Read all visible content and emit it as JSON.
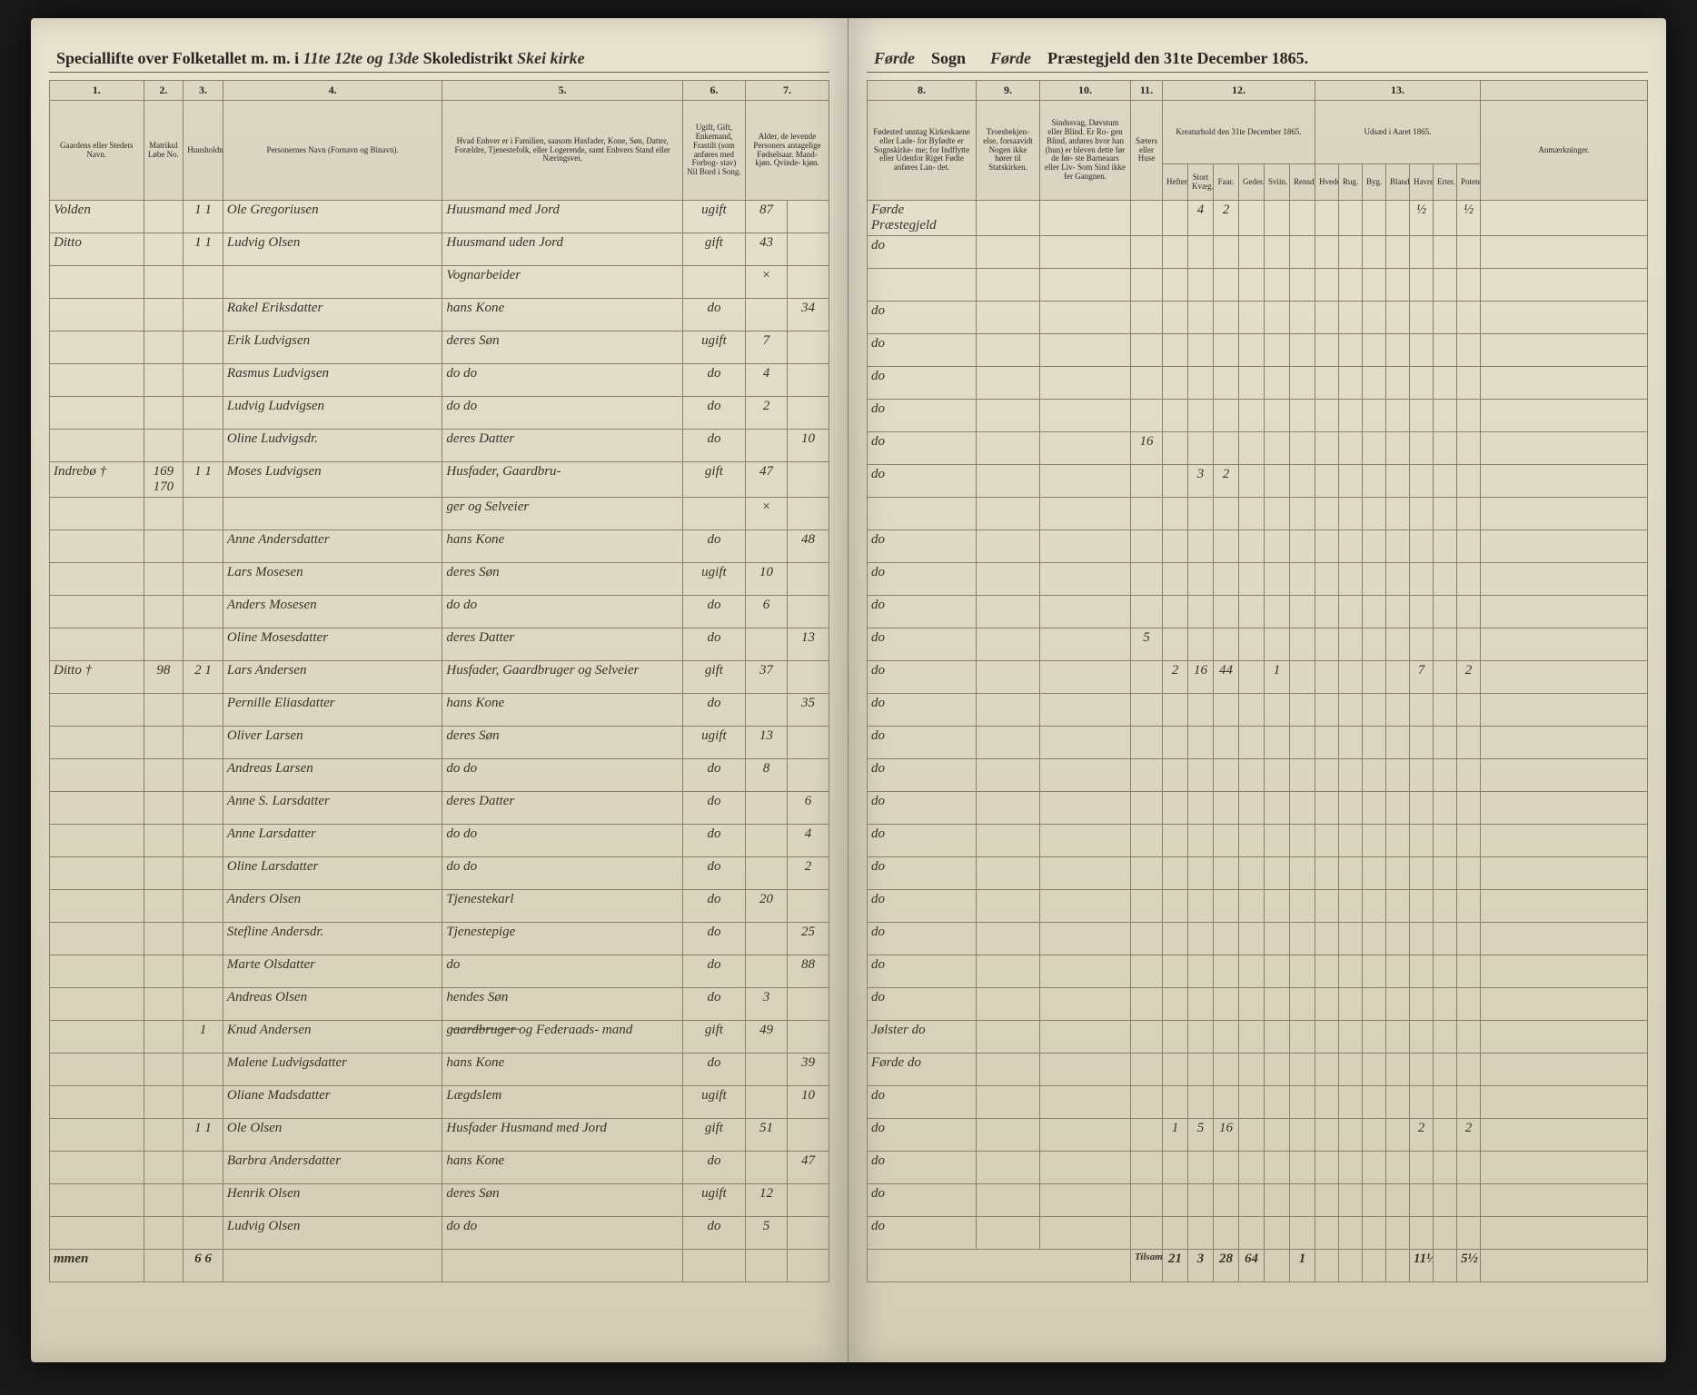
{
  "header": {
    "left_printed": "Speciallifte over Folketallet m. m. i",
    "left_hw": "11te 12te og 13de",
    "left_printed2": "Skoledistrikt",
    "left_hw2": "Skei kirke",
    "right_hw1": "Førde",
    "right_printed1": "Sogn",
    "right_hw2": "Førde",
    "right_printed2": "Præstegjeld den 31te December 1865."
  },
  "columns_left": {
    "c1": "1.",
    "c2": "2.",
    "c3": "3.",
    "c4": "4.",
    "c5": "5.",
    "c6": "6.",
    "c7": "7.",
    "h1": "Gaardens eller Stedets\nNavn.",
    "h2": "Matrikul\nLøbe\nNo.",
    "h3": "Huusholdninger.",
    "h4": "Personernes Navn (Fornavn og Binavn).",
    "h5": "Hvad Enhver er i Familien, saasom Husfader, Kone, Søn, Datter, Forældre, Tjenestefolk, eller Logerende,\nsamt\nEnhvers Stand eller Næringsvei.",
    "h6": "Ugift, Gift, Enkemand, Frastilt (som anføres med Forbog-\nstav)\nNil Bord i\nSong.",
    "h7": "Alder,\nde levende Personers antagelige Fødselsaar.\nMand-\nkjøn. Qvinde-\nkjøn."
  },
  "columns_right": {
    "c8": "8.",
    "c9": "9.",
    "c10": "10.",
    "c11": "11.",
    "c12": "12.",
    "c13": "13.",
    "h8": "Fødested\nunntag Kirkeskaene eller Lade-\nfor Byfødte er Sognskirke-\nme; for Indflytte eller Udenfor\nRiget Fødte anføres Lan-\ndet.",
    "h9": "Troesbekjen-\nelse, forsaavidt Nogen ikke hører til Statskirken.",
    "h10": "Sindssvag, Døvstum\neller Blind. Er Ro-\ngen Blind, anføres\nhvor han (hun) er\nbleven dette før de før-\nste Barneaars eller Liv-\nSom Sind ikke fer\nGangnen.",
    "h11": "Sæters eller Huse",
    "h12": "Kreaturhold\nden 31te December 1865.",
    "h12a": "Hefter.",
    "h12b": "Stort Kvæg.",
    "h12c": "Faar.",
    "h12d": "Geder.",
    "h12e": "Sviin.",
    "h12f": "Rensdyr.",
    "h13": "Udsæd i\nAaret 1865.",
    "h13a": "Hvede.",
    "h13b": "Rug.",
    "h13c": "Byg.",
    "h13d": "Blandkorn.",
    "h13e": "Havre.",
    "h13f": "Erter.",
    "h13g": "Poteter.",
    "h14": "Anmærkninger."
  },
  "rows": [
    {
      "c1": "Volden",
      "c2": "",
      "c3": "1 1",
      "c4": "Ole Gregoriusen",
      "c5": "Huusmand med Jord",
      "c6": "ugift",
      "c7m": "87",
      "c7k": "",
      "c8": "Førde Præstegjeld",
      "c12": {
        "b": "4",
        "c": "2"
      },
      "c13": {
        "e": "½",
        "g": "½"
      }
    },
    {
      "c1": "Ditto",
      "c2": "",
      "c3": "1 1",
      "c4": "Ludvig Olsen",
      "c5": "Huusmand uden Jord",
      "c6": "gift",
      "c7m": "43",
      "c7k": "",
      "c8": "do"
    },
    {
      "c1": "",
      "c2": "",
      "c3": "",
      "c4": "",
      "c5": "Vognarbeider",
      "c6": "",
      "c7m": "×",
      "c7k": "",
      "c8": ""
    },
    {
      "c1": "",
      "c2": "",
      "c3": "",
      "c4": "Rakel Eriksdatter",
      "c5": "hans Kone",
      "c6": "do",
      "c7m": "",
      "c7k": "34",
      "c8": "do"
    },
    {
      "c1": "",
      "c2": "",
      "c3": "",
      "c4": "Erik Ludvigsen",
      "c5": "deres Søn",
      "c6": "ugift",
      "c7m": "7",
      "c7k": "",
      "c8": "do"
    },
    {
      "c1": "",
      "c2": "",
      "c3": "",
      "c4": "Rasmus Ludvigsen",
      "c5": "do   do",
      "c6": "do",
      "c7m": "4",
      "c7k": "",
      "c8": "do"
    },
    {
      "c1": "",
      "c2": "",
      "c3": "",
      "c4": "Ludvig Ludvigsen",
      "c5": "do   do",
      "c6": "do",
      "c7m": "2",
      "c7k": "",
      "c8": "do"
    },
    {
      "c1": "",
      "c2": "",
      "c3": "",
      "c4": "Oline Ludvigsdr.",
      "c5": "deres Datter",
      "c6": "do",
      "c7m": "",
      "c7k": "10",
      "c8": "do",
      "c11": "16"
    },
    {
      "c1": "Indrebø †",
      "c2": "169\n170",
      "c3": "1 1",
      "c4": "Moses Ludvigsen",
      "c5": "Husfader, Gaardbru-",
      "c6": "gift",
      "c7m": "47",
      "c7k": "",
      "c8": "do",
      "c12": {
        "b": "3",
        "c": "2"
      }
    },
    {
      "c1": "",
      "c2": "",
      "c3": "",
      "c4": "",
      "c5": "ger og Selveier",
      "c6": "",
      "c7m": "×",
      "c7k": "",
      "c8": ""
    },
    {
      "c1": "",
      "c2": "",
      "c3": "",
      "c4": "Anne Andersdatter",
      "c5": "hans Kone",
      "c6": "do",
      "c7m": "",
      "c7k": "48",
      "c8": "do"
    },
    {
      "c1": "",
      "c2": "",
      "c3": "",
      "c4": "Lars Mosesen",
      "c5": "deres Søn",
      "c6": "ugift",
      "c7m": "10",
      "c7k": "",
      "c8": "do"
    },
    {
      "c1": "",
      "c2": "",
      "c3": "",
      "c4": "Anders Mosesen",
      "c5": "do   do",
      "c6": "do",
      "c7m": "6",
      "c7k": "",
      "c8": "do"
    },
    {
      "c1": "",
      "c2": "",
      "c3": "",
      "c4": "Oline Mosesdatter",
      "c5": "deres Datter",
      "c6": "do",
      "c7m": "",
      "c7k": "13",
      "c8": "do",
      "c11": "5"
    },
    {
      "c1": "Ditto †",
      "c2": "98",
      "c3": "2 1",
      "c4": "Lars Andersen",
      "c5": "Husfader, Gaardbruger\nog Selveier",
      "c6": "gift",
      "c7m": "37",
      "c7k": "",
      "c8": "do",
      "c12": {
        "a": "2",
        "b": "16",
        "c": "44",
        "e": "1"
      },
      "c13": {
        "e": "7",
        "g": "2"
      }
    },
    {
      "c1": "",
      "c2": "",
      "c3": "",
      "c4": "Pernille Eliasdatter",
      "c5": "hans Kone",
      "c6": "do",
      "c7m": "",
      "c7k": "35",
      "c8": "do"
    },
    {
      "c1": "",
      "c2": "",
      "c3": "",
      "c4": "Oliver Larsen",
      "c5": "deres Søn",
      "c6": "ugift",
      "c7m": "13",
      "c7k": "",
      "c8": "do"
    },
    {
      "c1": "",
      "c2": "",
      "c3": "",
      "c4": "Andreas Larsen",
      "c5": "do   do",
      "c6": "do",
      "c7m": "8",
      "c7k": "",
      "c8": "do"
    },
    {
      "c1": "",
      "c2": "",
      "c3": "",
      "c4": "Anne S. Larsdatter",
      "c5": "deres Datter",
      "c6": "do",
      "c7m": "",
      "c7k": "6",
      "c8": "do"
    },
    {
      "c1": "",
      "c2": "",
      "c3": "",
      "c4": "Anne Larsdatter",
      "c5": "do   do",
      "c6": "do",
      "c7m": "",
      "c7k": "4",
      "c8": "do"
    },
    {
      "c1": "",
      "c2": "",
      "c3": "",
      "c4": "Oline Larsdatter",
      "c5": "do   do",
      "c6": "do",
      "c7m": "",
      "c7k": "2",
      "c8": "do"
    },
    {
      "c1": "",
      "c2": "",
      "c3": "",
      "c4": "Anders Olsen",
      "c5": "Tjenestekarl",
      "c6": "do",
      "c7m": "20",
      "c7k": "",
      "c8": "do"
    },
    {
      "c1": "",
      "c2": "",
      "c3": "",
      "c4": "Stefline Andersdr.",
      "c5": "Tjenestepige",
      "c6": "do",
      "c7m": "",
      "c7k": "25",
      "c8": "do"
    },
    {
      "c1": "",
      "c2": "",
      "c3": "",
      "c4": "Marte Olsdatter",
      "c5": "do",
      "c6": "do",
      "c7m": "",
      "c7k": "88",
      "c8": "do"
    },
    {
      "c1": "",
      "c2": "",
      "c3": "",
      "c4": "Andreas Olsen",
      "c5": "hendes Søn",
      "c6": "do",
      "c7m": "3",
      "c7k": "",
      "c8": "do"
    },
    {
      "c1": "",
      "c2": "",
      "c3": "1",
      "c4": "Knud Andersen",
      "c5": "g̶a̶a̶r̶d̶b̶r̶u̶g̶e̶r̶ og Federaads-\nmand",
      "c6": "gift",
      "c7m": "49",
      "c7k": "",
      "c8": "Jølster   do"
    },
    {
      "c1": "",
      "c2": "",
      "c3": "",
      "c4": "Malene Ludvigsdatter",
      "c5": "hans Kone",
      "c6": "do",
      "c7m": "",
      "c7k": "39",
      "c8": "Førde   do"
    },
    {
      "c1": "",
      "c2": "",
      "c3": "",
      "c4": "Oliane Madsdatter",
      "c5": "Lægdslem",
      "c6": "ugift",
      "c7m": "",
      "c7k": "10",
      "c8": "do"
    },
    {
      "c1": "",
      "c2": "",
      "c3": "1 1",
      "c4": "Ole Olsen",
      "c5": "Husfader Husmand\nmed Jord",
      "c6": "gift",
      "c7m": "51",
      "c7k": "",
      "c8": "do",
      "c12": {
        "a": "1",
        "b": "5",
        "c": "16"
      },
      "c13": {
        "e": "2",
        "g": "2"
      }
    },
    {
      "c1": "",
      "c2": "",
      "c3": "",
      "c4": "Barbra Andersdatter",
      "c5": "hans Kone",
      "c6": "do",
      "c7m": "",
      "c7k": "47",
      "c8": "do"
    },
    {
      "c1": "",
      "c2": "",
      "c3": "",
      "c4": "Henrik Olsen",
      "c5": "deres Søn",
      "c6": "ugift",
      "c7m": "12",
      "c7k": "",
      "c8": "do"
    },
    {
      "c1": "",
      "c2": "",
      "c3": "",
      "c4": "Ludvig Olsen",
      "c5": "do   do",
      "c6": "do",
      "c7m": "5",
      "c7k": "",
      "c8": "do"
    }
  ],
  "footer": {
    "left_label": "mmen",
    "left_c3": "6 6",
    "right_label": "Tilsammen",
    "right_vals": {
      "a": "21",
      "b": "3",
      "c": "28",
      "d": "64",
      "e": "",
      "f": "1",
      "t1": "",
      "t2": "",
      "t3": "",
      "t4": "",
      "t5": "11½",
      "t6": "",
      "t7": "5½"
    }
  }
}
